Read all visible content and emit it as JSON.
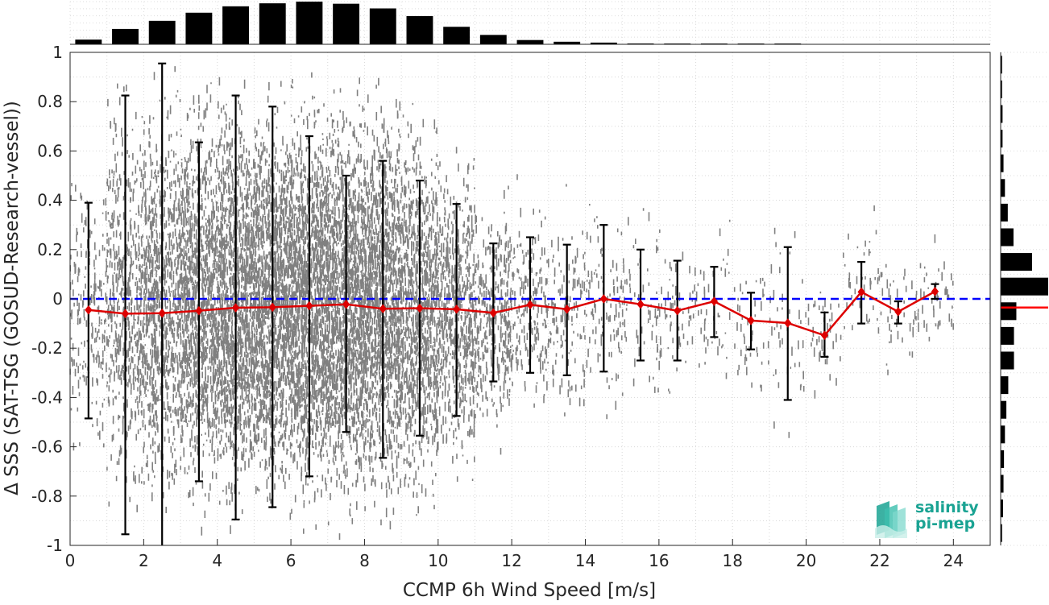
{
  "chart_data": {
    "type": "scatter",
    "xlabel": "CCMP 6h Wind Speed [m/s]",
    "ylabel": "Δ SSS (SAT-TSG (GOSUD-Research-vessel))",
    "xlim": [
      0,
      25
    ],
    "ylim": [
      -1,
      1
    ],
    "x_ticks": [
      "0",
      "2",
      "4",
      "6",
      "8",
      "10",
      "12",
      "14",
      "16",
      "18",
      "20",
      "22",
      "24"
    ],
    "y_ticks": [
      "-1",
      "-0.8",
      "-0.6",
      "-0.4",
      "-0.2",
      "0",
      "0.2",
      "0.4",
      "0.6",
      "0.8",
      "1"
    ],
    "grid": "on",
    "reference_line": {
      "y": 0,
      "color": "#0000ff",
      "style": "dashed"
    },
    "scatter_color": "#808080",
    "binned_mean": {
      "color": "#dd0000",
      "x": [
        0.5,
        1.5,
        2.5,
        3.5,
        4.5,
        5.5,
        6.5,
        7.5,
        8.5,
        9.5,
        10.5,
        11.5,
        12.5,
        13.5,
        14.5,
        15.5,
        16.5,
        17.5,
        18.5,
        19.5,
        20.5,
        21.5,
        22.5,
        23.5
      ],
      "y": [
        -0.045,
        -0.06,
        -0.058,
        -0.048,
        -0.036,
        -0.034,
        -0.028,
        -0.022,
        -0.04,
        -0.038,
        -0.042,
        -0.057,
        -0.024,
        -0.042,
        0.0,
        -0.022,
        -0.048,
        -0.01,
        -0.088,
        -0.098,
        -0.148,
        0.028,
        -0.052,
        0.03
      ],
      "err_low": [
        -0.485,
        -0.955,
        -1.0,
        -0.74,
        -0.895,
        -0.845,
        -0.72,
        -0.54,
        -0.645,
        -0.555,
        -0.475,
        -0.335,
        -0.3,
        -0.31,
        -0.295,
        -0.25,
        -0.25,
        -0.155,
        -0.205,
        -0.41,
        -0.235,
        -0.1,
        -0.1,
        0.0
      ],
      "err_high": [
        0.39,
        0.825,
        0.955,
        0.635,
        0.825,
        0.78,
        0.66,
        0.5,
        0.56,
        0.48,
        0.385,
        0.225,
        0.25,
        0.22,
        0.3,
        0.2,
        0.155,
        0.13,
        0.025,
        0.21,
        -0.055,
        0.15,
        -0.01,
        0.06
      ]
    },
    "top_histogram": {
      "bins_x": [
        0.5,
        1.5,
        2.5,
        3.5,
        4.5,
        5.5,
        6.5,
        7.5,
        8.5,
        9.5,
        10.5,
        11.5,
        12.5,
        13.5,
        14.5,
        15.5,
        16.5,
        17.5,
        18.5,
        19.5,
        20.5,
        21.5,
        22.5,
        23.5
      ],
      "relative_height": [
        0.11,
        0.36,
        0.55,
        0.74,
        0.89,
        0.96,
        1.0,
        0.95,
        0.84,
        0.66,
        0.41,
        0.22,
        0.1,
        0.06,
        0.04,
        0.02,
        0.015,
        0.005,
        0.003,
        0.002,
        0.0,
        0.0,
        0.0,
        0.0
      ]
    },
    "right_histogram": {
      "bins_y": [
        0.95,
        0.85,
        0.75,
        0.65,
        0.55,
        0.45,
        0.35,
        0.25,
        0.15,
        0.05,
        -0.05,
        -0.15,
        -0.25,
        -0.35,
        -0.45,
        -0.55,
        -0.65,
        -0.75,
        -0.85,
        -0.95
      ],
      "relative_height": [
        0.03,
        0.03,
        0.04,
        0.04,
        0.06,
        0.09,
        0.15,
        0.27,
        0.66,
        1.0,
        0.33,
        0.28,
        0.28,
        0.16,
        0.12,
        0.09,
        0.07,
        0.06,
        0.05,
        0.03
      ],
      "mean_line_y": -0.035,
      "bar_color": "#000000",
      "mean_color": "#ff0000"
    }
  },
  "logo": {
    "line1": "salinity",
    "line2": "pi-mep",
    "color": "#1aa393"
  }
}
